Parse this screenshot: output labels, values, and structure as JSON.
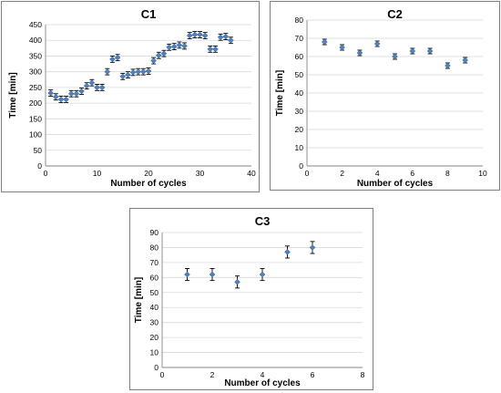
{
  "chart_data": [
    {
      "type": "scatter",
      "title": "C1",
      "xlabel": "Number of cycles",
      "ylabel": "Time [min]",
      "xlim": [
        0,
        40
      ],
      "ylim": [
        0,
        450
      ],
      "xticks": [
        0,
        10,
        20,
        30,
        40
      ],
      "yticks": [
        0,
        50,
        100,
        150,
        200,
        250,
        300,
        350,
        400,
        450
      ],
      "grid": true,
      "marker_color": "#4f81bd",
      "error_bars": true,
      "error_y": 10,
      "x": [
        1,
        2,
        3,
        4,
        5,
        6,
        7,
        8,
        9,
        10,
        11,
        12,
        13,
        14,
        15,
        16,
        17,
        18,
        19,
        20,
        21,
        22,
        23,
        24,
        25,
        26,
        27,
        28,
        29,
        30,
        31,
        32,
        33,
        34,
        35,
        36
      ],
      "y": [
        232,
        220,
        212,
        212,
        230,
        230,
        238,
        255,
        265,
        250,
        250,
        300,
        340,
        345,
        285,
        290,
        298,
        300,
        300,
        302,
        335,
        352,
        358,
        378,
        380,
        385,
        382,
        415,
        418,
        418,
        415,
        372,
        372,
        410,
        412,
        400
      ]
    },
    {
      "type": "scatter",
      "title": "C2",
      "xlabel": "Number of  cycles",
      "ylabel": "Time [min]",
      "xlim": [
        0,
        10
      ],
      "ylim": [
        0,
        80
      ],
      "xticks": [
        0,
        2,
        4,
        6,
        8,
        10
      ],
      "yticks": [
        0,
        10,
        20,
        30,
        40,
        50,
        60,
        70,
        80
      ],
      "grid": true,
      "marker_color": "#4f81bd",
      "error_bars": true,
      "error_y": 1.5,
      "x": [
        1,
        2,
        3,
        4,
        5,
        6,
        7,
        8,
        9
      ],
      "y": [
        68,
        65,
        62,
        67,
        60,
        63,
        63,
        55,
        58
      ]
    },
    {
      "type": "scatter",
      "title": "C3",
      "xlabel": "Number of cycles",
      "ylabel": "Time [min]",
      "xlim": [
        0,
        8
      ],
      "ylim": [
        0,
        90
      ],
      "xticks": [
        0,
        2,
        4,
        6,
        8
      ],
      "yticks": [
        0,
        10,
        20,
        30,
        40,
        50,
        60,
        70,
        80,
        90
      ],
      "grid": true,
      "marker_color": "#4f81bd",
      "error_bars": true,
      "error_y": 4,
      "x": [
        1,
        2,
        3,
        4,
        5,
        6
      ],
      "y": [
        62,
        62,
        57,
        62,
        77,
        80
      ]
    }
  ]
}
